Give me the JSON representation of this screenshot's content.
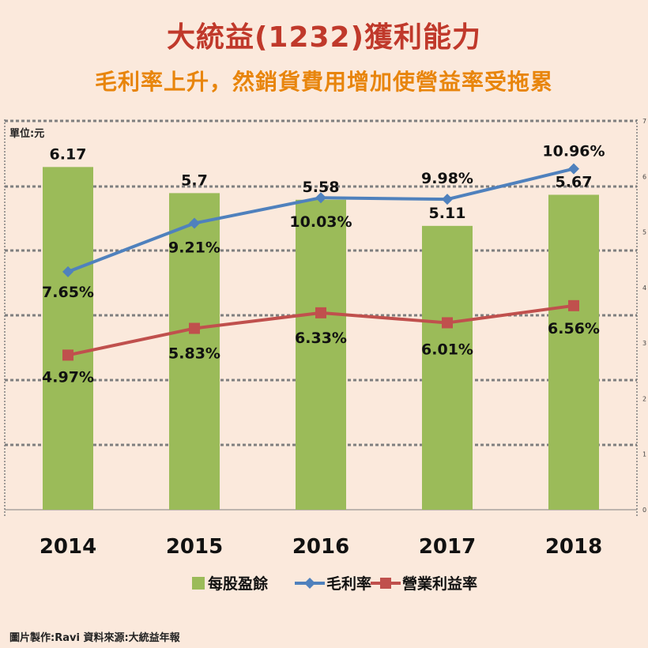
{
  "header": {
    "title": "大統益(1232)獲利能力",
    "subtitle": "毛利率上升，然銷貨費用增加使營益率受拖累",
    "unit": "單位:元"
  },
  "footer": {
    "credit": "圖片製作:Ravi   資料來源:大統益年報"
  },
  "colors": {
    "eps_bar": "#9bbb59",
    "gross_margin": "#4f81bd",
    "operating_margin": "#c0504d"
  },
  "chart_data": {
    "type": "bar",
    "categories": [
      "2014",
      "2015",
      "2016",
      "2017",
      "2018"
    ],
    "ylim": [
      0,
      7
    ],
    "yticks": [
      "0",
      "1",
      "2",
      "3",
      "4",
      "5",
      "6",
      "7"
    ],
    "legend_position": "bottom",
    "grid": true,
    "series": [
      {
        "name": "每股盈餘",
        "kind": "bar",
        "values": [
          6.17,
          5.7,
          5.58,
          5.11,
          5.67
        ],
        "labels": [
          "6.17",
          "5.7",
          "5.58",
          "5.11",
          "5.67"
        ]
      },
      {
        "name": "毛利率",
        "kind": "line",
        "marker": "diamond",
        "values": [
          7.65,
          9.21,
          10.03,
          9.98,
          10.96
        ],
        "labels": [
          "7.65%",
          "9.21%",
          "10.03%",
          "9.98%",
          "10.96%"
        ]
      },
      {
        "name": "營業利益率",
        "kind": "line",
        "marker": "square",
        "values": [
          4.97,
          5.83,
          6.33,
          6.01,
          6.56
        ],
        "labels": [
          "4.97%",
          "5.83%",
          "6.33%",
          "6.01%",
          "6.56%"
        ]
      }
    ]
  }
}
